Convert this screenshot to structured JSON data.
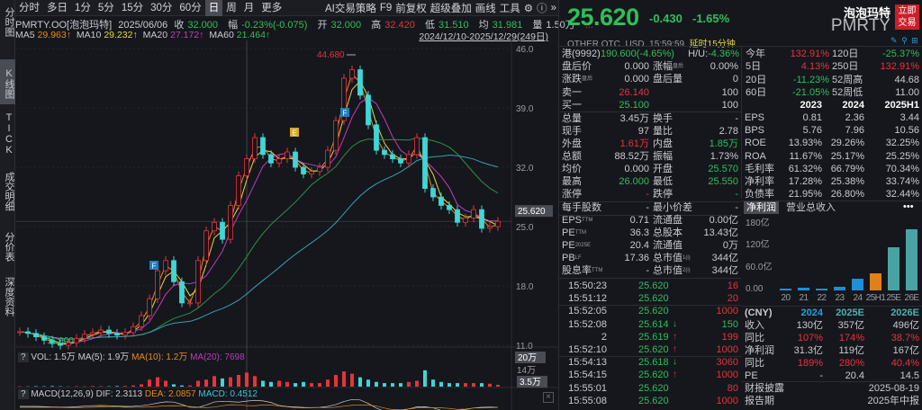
{
  "leftnav": [
    {
      "label": "分时图"
    },
    {
      "label": "K线图",
      "selected": true
    },
    {
      "label": "TICK"
    },
    {
      "label": "成交明细"
    },
    {
      "label": "分价表"
    },
    {
      "label": "深度资料"
    }
  ],
  "toolbar": {
    "tabs": [
      {
        "label": "分时"
      },
      {
        "label": "多日"
      },
      {
        "label": "1分"
      },
      {
        "label": "5分"
      },
      {
        "label": "15分"
      },
      {
        "label": "30分"
      },
      {
        "label": "60分"
      },
      {
        "label": "日",
        "selected": true
      },
      {
        "label": "周"
      },
      {
        "label": "月"
      },
      {
        "label": "更多"
      }
    ],
    "ai_strategy": "AI交易策略",
    "f9": "F9",
    "adjust": "前复权",
    "overlay": "超级叠加",
    "draw": "画线",
    "tools": "工具",
    "icons": [
      "gear-icon",
      "help-icon",
      "expand-icon"
    ]
  },
  "info": {
    "symbol": "PMRTY.OO[泡泡玛特]",
    "date": "2025/06/06",
    "close_label": "收",
    "close": "32.000",
    "chg_label": "幅",
    "chg": "-0.23%(-0.075)",
    "open_label": "开",
    "open": "32.000",
    "high_label": "高",
    "high": "32.420",
    "low_label": "低",
    "low": "31.510",
    "avg_label": "均",
    "avg": "31.981",
    "vol_label": "量",
    "vol": "1.50万",
    "more": "..."
  },
  "ma": {
    "ma5_label": "MA5",
    "ma5": "29.963↑",
    "ma10_label": "MA10",
    "ma10": "29.232↑",
    "ma20_label": "MA20",
    "ma20": "27.172↑",
    "ma60_label": "MA60",
    "ma60": "21.464↑",
    "range": "2024/12/10-2025/12/29(249日)"
  },
  "colors": {
    "up": "#e8333c",
    "down": "#3fd6d6",
    "ma5": "#e78a1e",
    "ma10": "#e6d84a",
    "ma20": "#c03cc0",
    "ma60": "#2e8f4a",
    "green": "#2fbf5a",
    "red": "#e8333c"
  },
  "chart_data": {
    "type": "candlestick",
    "price_axis": {
      "ticks": [
        "46.0",
        "39.0",
        "32.0",
        "25.0",
        "18.0",
        "11.0"
      ],
      "range": [
        11,
        46
      ]
    },
    "current_price_label": "25.620",
    "high_annotation": "44.680",
    "low_annotation": "11.000",
    "event_badges": [
      "F",
      "E",
      "F"
    ],
    "closes": [
      12.6,
      12.4,
      12.0,
      11.6,
      11.2,
      11.0,
      11.3,
      11.8,
      12.3,
      12.5,
      12.8,
      12.4,
      12.2,
      12.5,
      13.2,
      14.5,
      16.5,
      19.8,
      21.0,
      18.5,
      16.0,
      16.0,
      21.0,
      24.5,
      25.5,
      23.5,
      27.5,
      31.0,
      33.0,
      35.5,
      33.5,
      32.5,
      33.0,
      33.8,
      32.0,
      31.2,
      31.5,
      32.0,
      34.0,
      37.5,
      42.5,
      43.5,
      40.5,
      37.0,
      34.0,
      33.5,
      33.0,
      32.5,
      33.5,
      35.5,
      29.5,
      28.5,
      27.5,
      27.0,
      25.5,
      26.0,
      27.0,
      24.8,
      25.0,
      25.62
    ],
    "volume": {
      "header": "VOL: 1.5万",
      "ma5": "MA(5): 1.9万",
      "ma10": "MA(10): 1.2万",
      "ma20": "MA(20): 7698",
      "axis_top": "20万",
      "axis_mid": "14万",
      "current": "3.5万",
      "values": [
        0.3,
        0.2,
        0.4,
        0.3,
        0.5,
        0.3,
        0.2,
        0.4,
        0.3,
        0.5,
        0.4,
        0.3,
        0.5,
        0.6,
        1,
        2,
        6,
        8,
        5,
        2,
        1,
        1,
        5,
        6,
        9,
        7,
        8,
        10,
        12,
        9,
        5,
        4,
        5,
        4,
        3,
        4,
        3,
        3,
        6,
        10,
        13,
        11,
        8,
        6,
        4,
        3,
        3,
        3,
        4,
        5,
        14,
        6,
        4,
        3,
        3,
        3,
        3,
        3,
        2.5,
        1.5
      ]
    },
    "macd": {
      "header": "MACD(12,26,9)",
      "dif": "DIF: 2.3113",
      "dea": "DEA: 2.0857",
      "macd": "MACD: 0.4512"
    }
  },
  "quote": {
    "price": "25.620",
    "change": "-0.430",
    "pct": "-1.65%",
    "name": "泡泡玛特",
    "ticker": "PMRTY",
    "trade_button": "立即交易",
    "market": "OTHER OTC",
    "currency": "USD",
    "time": "15:59:59",
    "delay": "延时15分钟"
  },
  "hk": {
    "l1": "港(9992)",
    "v1": "190.600(-4.65%)",
    "l2": "H/U:",
    "v2": "-4.36%"
  },
  "stats": [
    {
      "l1": "盘后价",
      "v1": "0.000",
      "c1": "w",
      "l2": "涨幅",
      "s2": "盘后",
      "v2": "0.00%",
      "c2": "w"
    },
    {
      "l1": "涨跌",
      "s1": "盘后",
      "v1": "0.000",
      "c1": "w",
      "l2": "盘后量",
      "v2": "0",
      "c2": "w"
    },
    {
      "l1": "卖一",
      "v1": "26.140",
      "c1": "r",
      "l2": "",
      "v2": "100",
      "c2": "w"
    },
    {
      "l1": "买一",
      "v1": "25.100",
      "c1": "g",
      "l2": "",
      "v2": "100",
      "c2": "w"
    },
    {
      "l1": "总量",
      "v1": "3.45万",
      "c1": "w",
      "l2": "换手",
      "v2": "-",
      "c2": "w"
    },
    {
      "l1": "现手",
      "v1": "97",
      "c1": "w",
      "l2": "量比",
      "v2": "2.78",
      "c2": "w"
    },
    {
      "l1": "外盘",
      "v1": "1.61万",
      "c1": "r",
      "l2": "内盘",
      "v2": "1.85万",
      "c2": "g"
    },
    {
      "l1": "总额",
      "v1": "88.52万",
      "c1": "w",
      "l2": "振幅",
      "v2": "1.73%",
      "c2": "w"
    },
    {
      "l1": "均价",
      "v1": "0.000",
      "c1": "w",
      "l2": "开盘",
      "v2": "25.570",
      "c2": "g"
    },
    {
      "l1": "最高",
      "v1": "26.000",
      "c1": "g",
      "l2": "最低",
      "v2": "25.550",
      "c2": "g"
    },
    {
      "l1": "涨停",
      "v1": "-",
      "c1": "r",
      "l2": "跌停",
      "v2": "-",
      "c2": "g"
    },
    {
      "l1": "每手股数",
      "v1": "-",
      "c1": "w",
      "l2": "最小价差",
      "v2": "-",
      "c2": "w"
    },
    {
      "l1": "EPS",
      "s1": "TTM",
      "v1": "0.71",
      "c1": "w",
      "l2": "流通盘",
      "v2": "0.00亿",
      "c2": "w"
    },
    {
      "l1": "PE",
      "s1": "TTM",
      "v1": "36.3",
      "c1": "w",
      "l2": "总股本",
      "v2": "13.43亿",
      "c2": "w"
    },
    {
      "l1": "PE",
      "s1": "2025E",
      "v1": "20.4",
      "c1": "w",
      "l2": "流通值",
      "v2": "0万",
      "c2": "w"
    },
    {
      "l1": "PB",
      "s1": "LF",
      "v1": "17.36",
      "c1": "w",
      "l2": "总市值",
      "s2": "1(i)",
      "v2": "344亿",
      "c2": "w"
    },
    {
      "l1": "股息率",
      "s1": "TTM",
      "v1": "-",
      "c1": "w",
      "l2": "总市值",
      "s2": "2(i)",
      "v2": "344亿",
      "c2": "w"
    }
  ],
  "ticks": [
    {
      "time": "15:50:23",
      "price": "25.620",
      "arrow": "",
      "vol": "16",
      "vc": "r"
    },
    {
      "time": "15:51:12",
      "price": "25.620",
      "arrow": "",
      "vol": "20",
      "vc": "r"
    },
    {
      "time": "15:52:05",
      "price": "25.620",
      "arrow": "",
      "vol": "1000",
      "vc": "r"
    },
    {
      "time": "15:52:08",
      "price": "25.614",
      "arrow": "↓",
      "ac": "g",
      "vol": "150",
      "vc": "g"
    },
    {
      "time": "2",
      "price": "25.619",
      "arrow": "↑",
      "ac": "r",
      "vol": "199",
      "vc": "r"
    },
    {
      "time": "15:52:10",
      "price": "25.620",
      "arrow": "↑",
      "ac": "r",
      "vol": "1000",
      "vc": "r"
    },
    {
      "time": "15:54:13",
      "price": "25.618",
      "arrow": "↓",
      "ac": "g",
      "vol": "3060",
      "vc": "r"
    },
    {
      "time": "15:54:15",
      "price": "25.620",
      "arrow": "↑",
      "ac": "r",
      "vol": "1000",
      "vc": "r"
    },
    {
      "time": "15:55:01",
      "price": "25.620",
      "arrow": "",
      "vol": "80",
      "vc": "r"
    },
    {
      "time": "15:55:08",
      "price": "25.620",
      "arrow": "",
      "vol": "1000",
      "vc": "r"
    }
  ],
  "performance": [
    {
      "l1": "今年",
      "v1": "132.91%",
      "c1": "r",
      "l2": "120日",
      "v2": "-25.37%",
      "c2": "g"
    },
    {
      "l1": "5日",
      "v1": "4.13%",
      "c1": "r",
      "l2": "250日",
      "v2": "132.91%",
      "c2": "r"
    },
    {
      "l1": "20日",
      "v1": "-11.23%",
      "c1": "g",
      "l2": "52周高",
      "v2": "44.68",
      "c2": "w"
    },
    {
      "l1": "60日",
      "v1": "-21.05%",
      "c1": "g",
      "l2": "52周低",
      "v2": "11.00",
      "c2": "w"
    }
  ],
  "financials": {
    "headers": [
      "2023",
      "2024",
      "2025H1"
    ],
    "rows": [
      {
        "label": "EPS",
        "values": [
          "0.81",
          "2.36",
          "3.44"
        ]
      },
      {
        "label": "BPS",
        "values": [
          "5.76",
          "7.96",
          "10.56"
        ]
      },
      {
        "label": "ROE",
        "values": [
          "13.93%",
          "29.26%",
          "32.25%"
        ]
      },
      {
        "label": "ROA",
        "values": [
          "11.67%",
          "25.17%",
          "25.25%"
        ]
      },
      {
        "label": "毛利率",
        "values": [
          "61.32%",
          "66.79%",
          "70.34%"
        ]
      },
      {
        "label": "净利率",
        "values": [
          "17.28%",
          "25.38%",
          "33.74%"
        ]
      },
      {
        "label": "负债率",
        "values": [
          "21.95%",
          "26.80%",
          "32.44%"
        ]
      }
    ]
  },
  "profit_chart": {
    "tabs": [
      {
        "label": "净利润",
        "selected": true
      },
      {
        "label": "营业总收入"
      }
    ],
    "more": "•••",
    "y_ticks": [
      "180亿",
      "120亿",
      "60.0亿",
      "0.00"
    ],
    "y_max": 180,
    "categories": [
      "20",
      "21",
      "22",
      "23",
      "24",
      "25H1",
      "25E",
      "26E"
    ],
    "values": [
      5.2,
      8.5,
      4.8,
      10.9,
      31.3,
      45.7,
      119,
      167
    ],
    "bar_colors": [
      "#1e8fd8",
      "#1e8fd8",
      "#1e8fd8",
      "#1e8fd8",
      "#1e8fd8",
      "#e0801a",
      "#4aa3a3",
      "#4aa3a3"
    ]
  },
  "forecast": {
    "headers": [
      {
        "label": "(CNY)",
        "c": "w"
      },
      {
        "label": "2024",
        "c": "b"
      },
      {
        "label": "2025E",
        "c": "t"
      },
      {
        "label": "2026E",
        "c": "t"
      }
    ],
    "rows": [
      {
        "label": "收入",
        "values": [
          "130亿",
          "357亿",
          "496亿"
        ],
        "c": "w"
      },
      {
        "label": "同比",
        "values": [
          "107%",
          "174%",
          "38.7%"
        ],
        "c": "r"
      },
      {
        "label": "净利润",
        "values": [
          "31.3亿",
          "119亿",
          "167亿"
        ],
        "c": "w"
      },
      {
        "label": "同比",
        "values": [
          "189%",
          "280%",
          "40.4%"
        ],
        "c": "r"
      },
      {
        "label": "PE",
        "values": [
          "-",
          "20.4",
          "14.5"
        ],
        "c": "w"
      }
    ],
    "report_label": "财报披露",
    "report_date": "2025-08-19",
    "period_label": "报告期",
    "period": "2025年中报"
  }
}
